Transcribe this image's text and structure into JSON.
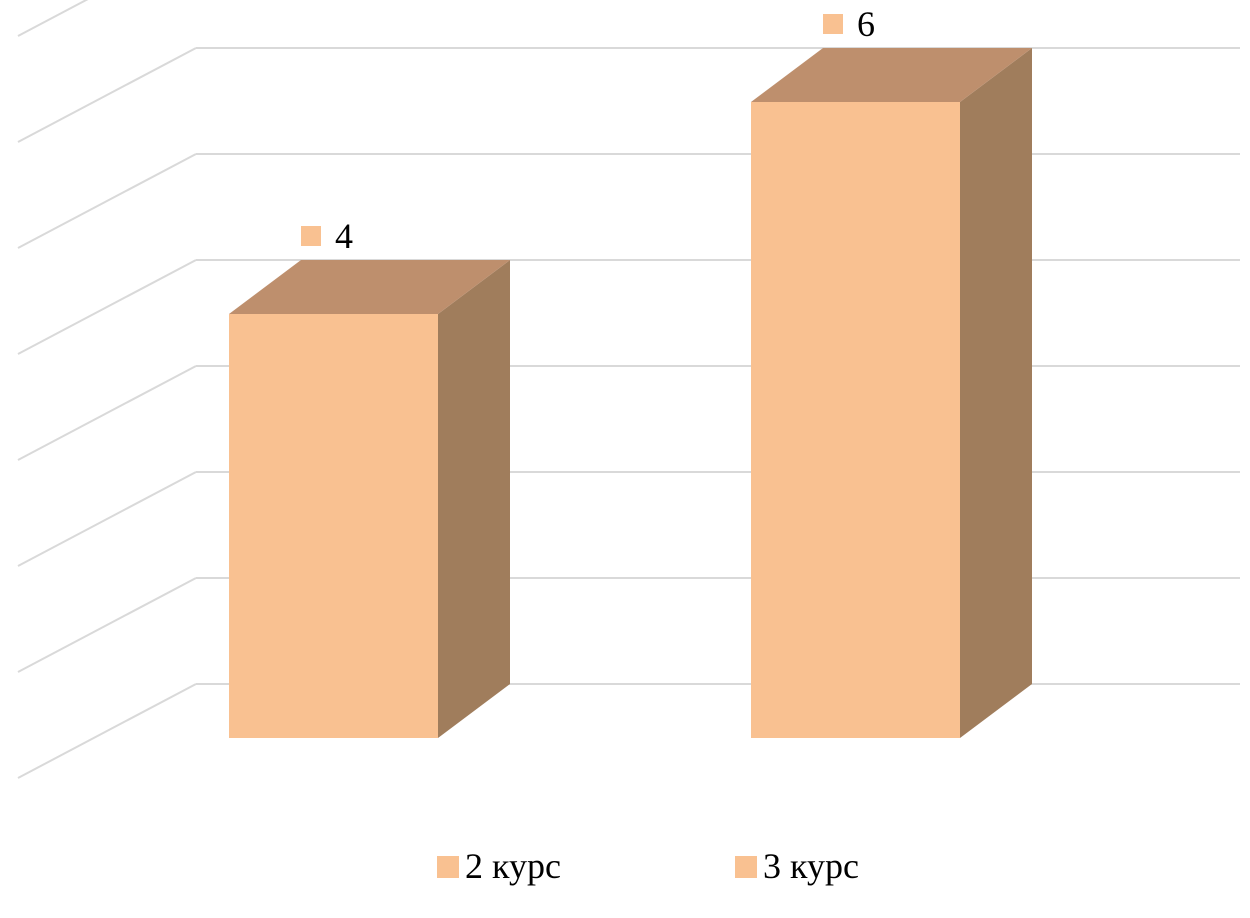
{
  "chart_data": {
    "type": "bar",
    "style": "3d-column",
    "categories": [
      "2 курс",
      "3 курс"
    ],
    "series": [
      {
        "values": [
          4,
          6
        ]
      }
    ],
    "data_labels": [
      "4",
      "6"
    ],
    "legend": {
      "position": "bottom",
      "entries": [
        "2 курс",
        "3 курс"
      ]
    },
    "ylim": [
      0,
      7
    ],
    "grid": true,
    "colors": {
      "front": "#f9c191",
      "top": "#be8f6d",
      "side": "#a07d5c",
      "grid": "#d9d9d9",
      "legend_marker": "#f9c191",
      "label_marker": "#f9c191"
    }
  }
}
